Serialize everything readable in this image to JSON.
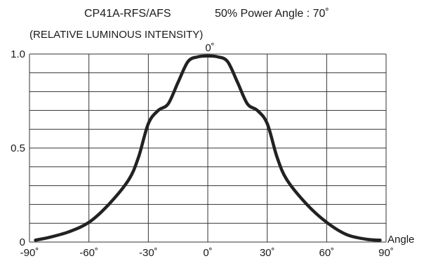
{
  "chart_data": {
    "type": "line",
    "title": "CP41A-RFS/AFS",
    "subtitle": "50% Power Angle : 70˚",
    "ylabel": "(RELATIVE LUMINOUS INTENSITY)",
    "xlabel": "Angle",
    "top_label": "0˚",
    "xlim": [
      -90,
      90
    ],
    "ylim": [
      0,
      1.0
    ],
    "grid": true,
    "x_ticks": [
      {
        "value": -90,
        "label": "-90˚"
      },
      {
        "value": -60,
        "label": "-60˚"
      },
      {
        "value": -30,
        "label": "-30˚"
      },
      {
        "value": 0,
        "label": "0˚"
      },
      {
        "value": 30,
        "label": "30˚"
      },
      {
        "value": 60,
        "label": "60˚"
      },
      {
        "value": 90,
        "label": "90˚"
      }
    ],
    "y_ticks": [
      {
        "value": 0,
        "label": "0"
      },
      {
        "value": 0.5,
        "label": "0.5"
      },
      {
        "value": 1.0,
        "label": "1.0"
      }
    ],
    "series": [
      {
        "color": "#222222",
        "x": [
          -87,
          -80,
          -70,
          -60,
          -50,
          -40,
          -35,
          -30,
          -25,
          -20,
          -15,
          -10,
          -5,
          0,
          5,
          10,
          15,
          20,
          25,
          30,
          35,
          40,
          50,
          60,
          70,
          80,
          87
        ],
        "y": [
          0.01,
          0.025,
          0.055,
          0.105,
          0.2,
          0.33,
          0.45,
          0.63,
          0.7,
          0.735,
          0.85,
          0.96,
          0.985,
          0.99,
          0.985,
          0.96,
          0.85,
          0.735,
          0.7,
          0.63,
          0.45,
          0.33,
          0.2,
          0.105,
          0.04,
          0.015,
          0.01
        ]
      }
    ]
  }
}
